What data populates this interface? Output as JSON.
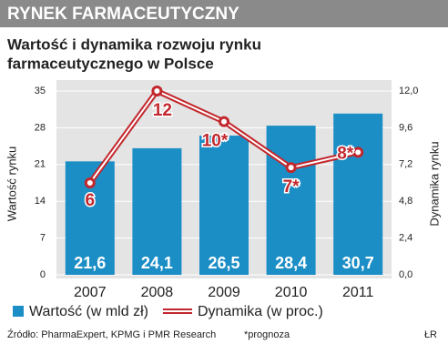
{
  "header": "RYNEK FARMACEUTYCZNY",
  "chart_data": {
    "type": "bar",
    "title": "Wartość i dynamika rozwoju rynku",
    "subtitle": "farmaceutycznego w Polsce",
    "categories": [
      "2007",
      "2008",
      "2009",
      "2010",
      "2011"
    ],
    "ylabel": "Wartość rynku",
    "y2label": "Dynamika rynku",
    "ylim": [
      0,
      35
    ],
    "yticks": [
      0,
      7,
      14,
      21,
      28,
      35
    ],
    "y2lim": [
      0,
      12
    ],
    "y2ticks": [
      {
        "value": 0,
        "label": "0,0"
      },
      {
        "value": 2.4,
        "label": "2,4"
      },
      {
        "value": 4.8,
        "label": "4,8"
      },
      {
        "value": 7.2,
        "label": "7,2"
      },
      {
        "value": 9.6,
        "label": "9,6"
      },
      {
        "value": 12,
        "label": "12,0"
      }
    ],
    "series": [
      {
        "name": "Wartość (w mld zł)",
        "type": "bar",
        "color": "#1b8ec6",
        "values": [
          21.6,
          24.1,
          26.5,
          28.4,
          30.7
        ],
        "value_labels": [
          "21,6",
          "24,1",
          "26,5",
          "28,4",
          "30,7"
        ]
      },
      {
        "name": "Dynamika (w proc.)",
        "type": "line",
        "axis": "y2",
        "color": "#c2272d",
        "values": [
          6,
          12,
          10,
          7,
          8
        ],
        "value_labels": [
          "6",
          "12",
          "10*",
          "7*",
          "8*"
        ]
      }
    ],
    "source": "Źródło: PharmaExpert, KPMG i PMR Research",
    "note": "*prognoza",
    "author": "ŁR"
  }
}
